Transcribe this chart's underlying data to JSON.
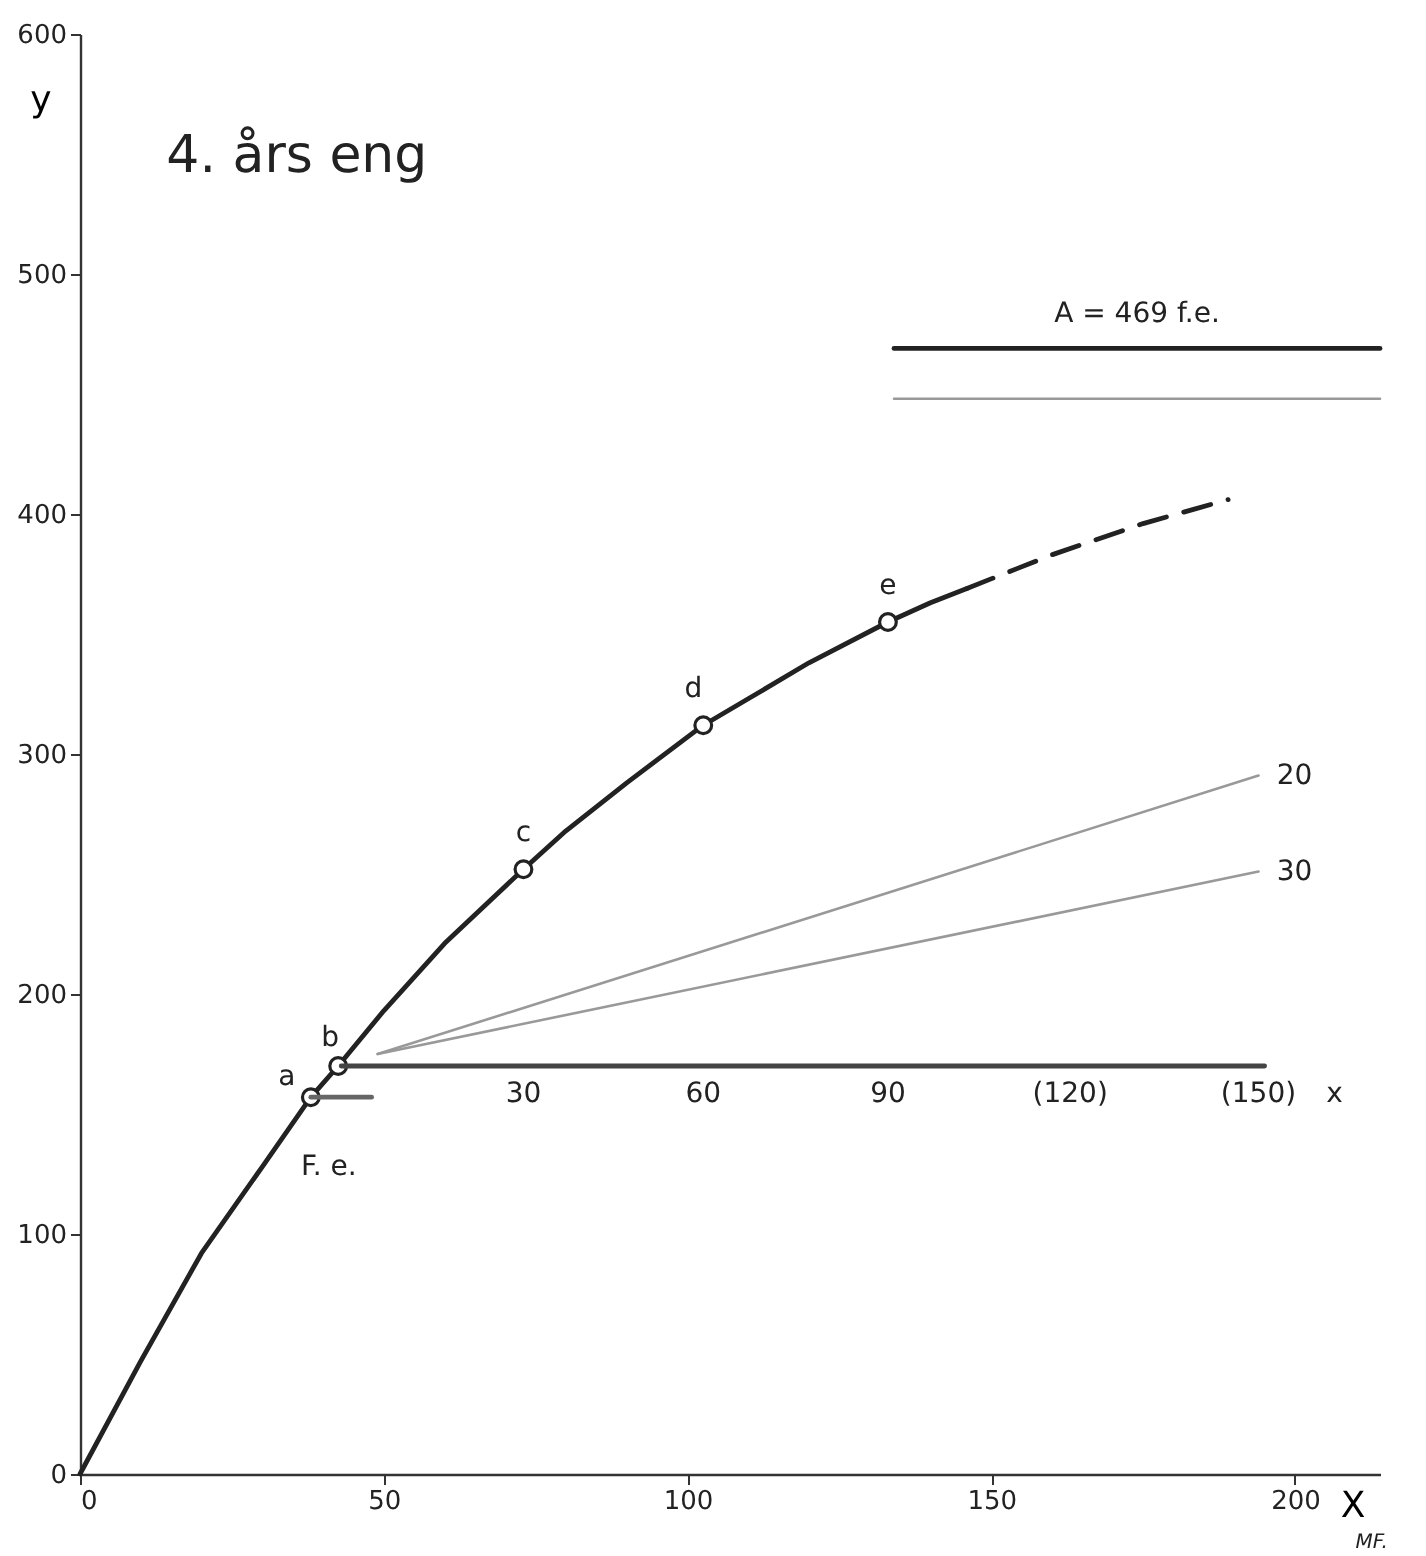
{
  "chart_data": {
    "type": "line",
    "title": "4. års eng",
    "xlabel": "X",
    "ylabel": "y",
    "xlim": [
      0,
      214
    ],
    "ylim": [
      0,
      600
    ],
    "xticks": [
      0,
      50,
      100,
      150,
      200
    ],
    "yticks": [
      0,
      100,
      200,
      300,
      400,
      500,
      600
    ],
    "grid": false,
    "series": [
      {
        "color": "#222222",
        "x": [
          0,
          10,
          20,
          30,
          38,
          42.5,
          50,
          60,
          73,
          80,
          90,
          102.6,
          110,
          120,
          133,
          140,
          146
        ],
        "values": [
          0,
          47,
          92,
          128,
          157,
          170,
          193,
          221,
          252,
          268,
          288,
          312,
          323,
          338,
          355,
          363,
          369
        ]
      },
      {
        "color": "#222222",
        "line_style": "dashed",
        "x": [
          146,
          160,
          175,
          189
        ],
        "values": [
          369,
          383,
          396,
          406
        ]
      },
      {
        "type": "scatter",
        "marker": "circle",
        "color": "#222222",
        "x": [
          38,
          42.5,
          73,
          102.6,
          133
        ],
        "values": [
          157,
          170,
          252,
          312,
          355
        ]
      },
      {
        "color": "#444444",
        "x": [
          43,
          195
        ],
        "values": [
          170,
          170
        ]
      },
      {
        "color": "#666666",
        "x": [
          38,
          48
        ],
        "values": [
          157,
          157
        ]
      },
      {
        "color": "#999999",
        "x": [
          49,
          194
        ],
        "values": [
          175,
          291
        ]
      },
      {
        "color": "#999999",
        "x": [
          49,
          194
        ],
        "values": [
          175,
          251
        ]
      },
      {
        "color": "#222222",
        "x": [
          134,
          214
        ],
        "values": [
          469,
          469
        ]
      },
      {
        "color": "#999999",
        "x": [
          134,
          214
        ],
        "values": [
          448,
          448
        ]
      }
    ],
    "annotations": [
      {
        "text": "a",
        "x": 38,
        "y": 157
      },
      {
        "text": "b",
        "x": 42.5,
        "y": 170
      },
      {
        "text": "c",
        "x": 73,
        "y": 252
      },
      {
        "text": "d",
        "x": 102.6,
        "y": 312
      },
      {
        "text": "e",
        "x": 133,
        "y": 355
      },
      {
        "text": "F. e.",
        "x": 38,
        "y": 157
      },
      {
        "text": "30",
        "x": 73,
        "y": 170
      },
      {
        "text": "60",
        "x": 102.6,
        "y": 170
      },
      {
        "text": "90",
        "x": 133,
        "y": 170
      },
      {
        "text": "(120)",
        "x": 163,
        "y": 170
      },
      {
        "text": "(150)",
        "x": 194,
        "y": 170
      },
      {
        "text": "x",
        "x": 195,
        "y": 170
      },
      {
        "text": "20",
        "x": 194,
        "y": 291
      },
      {
        "text": "30",
        "x": 194,
        "y": 251
      },
      {
        "text": "A = 469 f.e.",
        "x": 174,
        "y": 469
      },
      "MF."
    ]
  }
}
